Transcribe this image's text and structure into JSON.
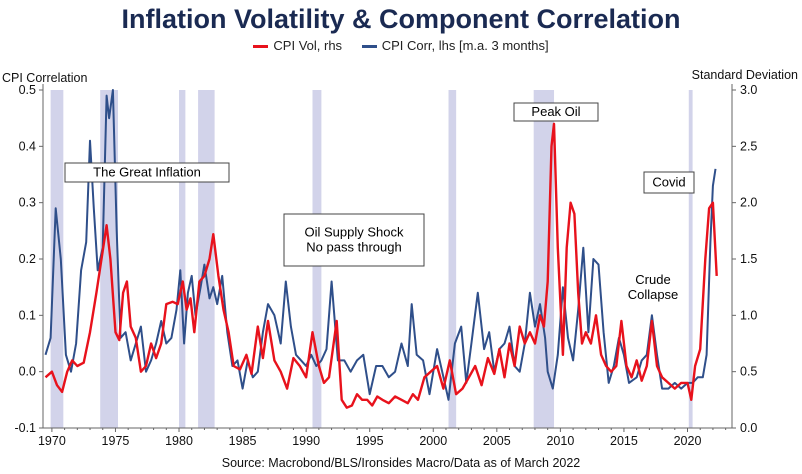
{
  "title": "Inflation Volatility & Component Correlation",
  "source": "Source: Macrobond/BLS/Ironsides Macro/Data as of March 2022",
  "chart_data": {
    "type": "line",
    "title": "Inflation Volatility & Component Correlation",
    "ylabel_left": "CPI Correlation",
    "ylabel_right": "Standard Deviation",
    "ylim_left": [
      -0.1,
      0.5
    ],
    "ylim_right": [
      0.0,
      3.0
    ],
    "xlim": [
      1969.3,
      2023.5
    ],
    "x_ticks": [
      1970,
      1975,
      1980,
      1985,
      1990,
      1995,
      2000,
      2005,
      2010,
      2015,
      2020
    ],
    "y_left_ticks": [
      -0.1,
      0.0,
      0.1,
      0.2,
      0.3,
      0.4,
      0.5
    ],
    "y_right_ticks": [
      0.0,
      0.5,
      1.0,
      1.5,
      2.0,
      2.5,
      3.0
    ],
    "legend_position": "top-center",
    "grid": false,
    "series": [
      {
        "name": "CPI Vol, rhs",
        "axis": "right",
        "color": "#e8121c",
        "points": [
          [
            1969.5,
            0.45
          ],
          [
            1970.0,
            0.5
          ],
          [
            1970.4,
            0.38
          ],
          [
            1970.8,
            0.32
          ],
          [
            1971.2,
            0.5
          ],
          [
            1971.6,
            0.6
          ],
          [
            1972.0,
            0.55
          ],
          [
            1972.5,
            0.58
          ],
          [
            1973.0,
            0.85
          ],
          [
            1973.5,
            1.2
          ],
          [
            1973.9,
            1.5
          ],
          [
            1974.3,
            1.8
          ],
          [
            1974.6,
            1.5
          ],
          [
            1975.0,
            0.85
          ],
          [
            1975.3,
            0.78
          ],
          [
            1975.6,
            1.2
          ],
          [
            1975.9,
            1.3
          ],
          [
            1976.2,
            0.9
          ],
          [
            1976.6,
            0.8
          ],
          [
            1977.0,
            0.5
          ],
          [
            1977.4,
            0.55
          ],
          [
            1977.8,
            0.75
          ],
          [
            1978.2,
            0.62
          ],
          [
            1978.6,
            0.75
          ],
          [
            1979.0,
            1.1
          ],
          [
            1979.5,
            1.12
          ],
          [
            1979.9,
            1.1
          ],
          [
            1980.3,
            1.3
          ],
          [
            1980.6,
            1.05
          ],
          [
            1980.9,
            1.15
          ],
          [
            1981.2,
            0.85
          ],
          [
            1981.6,
            1.3
          ],
          [
            1982.0,
            1.35
          ],
          [
            1982.4,
            1.5
          ],
          [
            1982.7,
            1.72
          ],
          [
            1983.1,
            1.35
          ],
          [
            1983.5,
            1.05
          ],
          [
            1983.9,
            0.85
          ],
          [
            1984.3,
            0.55
          ],
          [
            1984.8,
            0.52
          ],
          [
            1985.3,
            0.65
          ],
          [
            1985.7,
            0.48
          ],
          [
            1986.2,
            0.9
          ],
          [
            1986.6,
            0.62
          ],
          [
            1987.0,
            0.95
          ],
          [
            1987.5,
            0.6
          ],
          [
            1988.0,
            0.5
          ],
          [
            1988.5,
            0.35
          ],
          [
            1989.0,
            0.62
          ],
          [
            1989.5,
            0.55
          ],
          [
            1990.0,
            0.45
          ],
          [
            1990.5,
            0.85
          ],
          [
            1991.0,
            0.55
          ],
          [
            1991.4,
            0.4
          ],
          [
            1991.8,
            0.45
          ],
          [
            1992.4,
            0.95
          ],
          [
            1992.8,
            0.25
          ],
          [
            1993.2,
            0.18
          ],
          [
            1993.6,
            0.2
          ],
          [
            1994.0,
            0.3
          ],
          [
            1994.4,
            0.25
          ],
          [
            1994.8,
            0.25
          ],
          [
            1995.2,
            0.2
          ],
          [
            1995.6,
            0.28
          ],
          [
            1996.0,
            0.25
          ],
          [
            1996.5,
            0.22
          ],
          [
            1997.0,
            0.28
          ],
          [
            1997.5,
            0.25
          ],
          [
            1998.0,
            0.22
          ],
          [
            1998.4,
            0.3
          ],
          [
            1998.8,
            0.25
          ],
          [
            1999.3,
            0.45
          ],
          [
            1999.8,
            0.5
          ],
          [
            2000.3,
            0.55
          ],
          [
            2000.8,
            0.35
          ],
          [
            2001.3,
            0.6
          ],
          [
            2001.8,
            0.3
          ],
          [
            2002.3,
            0.35
          ],
          [
            2002.8,
            0.45
          ],
          [
            2003.3,
            0.55
          ],
          [
            2003.8,
            0.38
          ],
          [
            2004.3,
            0.62
          ],
          [
            2004.8,
            0.48
          ],
          [
            2005.2,
            0.7
          ],
          [
            2005.6,
            0.45
          ],
          [
            2006.0,
            0.75
          ],
          [
            2006.4,
            0.55
          ],
          [
            2006.8,
            0.9
          ],
          [
            2007.2,
            0.75
          ],
          [
            2007.6,
            0.85
          ],
          [
            2008.0,
            0.75
          ],
          [
            2008.4,
            1.0
          ],
          [
            2008.7,
            0.9
          ],
          [
            2009.0,
            1.3
          ],
          [
            2009.3,
            2.5
          ],
          [
            2009.5,
            2.7
          ],
          [
            2009.8,
            1.6
          ],
          [
            2010.2,
            0.65
          ],
          [
            2010.5,
            1.6
          ],
          [
            2010.8,
            2.0
          ],
          [
            2011.1,
            1.9
          ],
          [
            2011.4,
            1.2
          ],
          [
            2011.7,
            0.75
          ],
          [
            2012.0,
            0.85
          ],
          [
            2012.4,
            0.75
          ],
          [
            2012.8,
            1.0
          ],
          [
            2013.2,
            0.65
          ],
          [
            2013.6,
            0.55
          ],
          [
            2014.0,
            0.5
          ],
          [
            2014.4,
            0.55
          ],
          [
            2014.8,
            0.95
          ],
          [
            2015.2,
            0.55
          ],
          [
            2015.6,
            0.45
          ],
          [
            2016.0,
            0.6
          ],
          [
            2016.4,
            0.42
          ],
          [
            2016.8,
            0.55
          ],
          [
            2017.2,
            0.95
          ],
          [
            2017.6,
            0.55
          ],
          [
            2018.0,
            0.45
          ],
          [
            2018.5,
            0.4
          ],
          [
            2019.0,
            0.35
          ],
          [
            2019.5,
            0.4
          ],
          [
            2020.0,
            0.4
          ],
          [
            2020.3,
            0.25
          ],
          [
            2020.6,
            0.55
          ],
          [
            2021.0,
            0.7
          ],
          [
            2021.4,
            1.5
          ],
          [
            2021.7,
            1.95
          ],
          [
            2022.0,
            2.0
          ],
          [
            2022.3,
            1.35
          ]
        ]
      },
      {
        "name": "CPI Corr, lhs [m.a. 3 months]",
        "axis": "left",
        "color": "#2f4f8a",
        "points": [
          [
            1969.5,
            0.03
          ],
          [
            1969.9,
            0.06
          ],
          [
            1970.3,
            0.29
          ],
          [
            1970.7,
            0.2
          ],
          [
            1971.1,
            0.03
          ],
          [
            1971.5,
            0.0
          ],
          [
            1971.9,
            0.05
          ],
          [
            1972.3,
            0.18
          ],
          [
            1972.7,
            0.23
          ],
          [
            1973.0,
            0.41
          ],
          [
            1973.3,
            0.29
          ],
          [
            1973.6,
            0.18
          ],
          [
            1974.0,
            0.22
          ],
          [
            1974.3,
            0.49
          ],
          [
            1974.5,
            0.45
          ],
          [
            1974.8,
            0.5
          ],
          [
            1975.1,
            0.25
          ],
          [
            1975.4,
            0.06
          ],
          [
            1975.8,
            0.07
          ],
          [
            1976.2,
            0.02
          ],
          [
            1976.6,
            0.05
          ],
          [
            1977.0,
            0.08
          ],
          [
            1977.4,
            0.0
          ],
          [
            1977.8,
            0.02
          ],
          [
            1978.2,
            0.05
          ],
          [
            1978.6,
            0.09
          ],
          [
            1979.0,
            0.05
          ],
          [
            1979.4,
            0.06
          ],
          [
            1979.8,
            0.11
          ],
          [
            1980.1,
            0.18
          ],
          [
            1980.4,
            0.05
          ],
          [
            1980.7,
            0.14
          ],
          [
            1981.0,
            0.17
          ],
          [
            1981.3,
            0.1
          ],
          [
            1981.7,
            0.15
          ],
          [
            1982.0,
            0.19
          ],
          [
            1982.4,
            0.13
          ],
          [
            1982.7,
            0.15
          ],
          [
            1983.0,
            0.12
          ],
          [
            1983.4,
            0.17
          ],
          [
            1983.8,
            0.07
          ],
          [
            1984.2,
            0.01
          ],
          [
            1984.6,
            0.02
          ],
          [
            1985.0,
            -0.03
          ],
          [
            1985.4,
            0.02
          ],
          [
            1985.8,
            -0.01
          ],
          [
            1986.2,
            0.0
          ],
          [
            1986.6,
            0.07
          ],
          [
            1987.0,
            0.12
          ],
          [
            1987.5,
            0.1
          ],
          [
            1988.0,
            0.05
          ],
          [
            1988.4,
            0.16
          ],
          [
            1988.8,
            0.08
          ],
          [
            1989.2,
            0.03
          ],
          [
            1989.6,
            0.02
          ],
          [
            1990.0,
            0.01
          ],
          [
            1990.4,
            0.03
          ],
          [
            1990.8,
            0.01
          ],
          [
            1991.2,
            0.02
          ],
          [
            1991.6,
            0.04
          ],
          [
            1992.0,
            0.16
          ],
          [
            1992.5,
            0.02
          ],
          [
            1993.0,
            0.02
          ],
          [
            1993.5,
            0.0
          ],
          [
            1994.0,
            0.02
          ],
          [
            1994.5,
            0.03
          ],
          [
            1995.0,
            -0.04
          ],
          [
            1995.5,
            0.01
          ],
          [
            1996.0,
            0.01
          ],
          [
            1996.5,
            -0.01
          ],
          [
            1997.0,
            0.0
          ],
          [
            1997.5,
            0.05
          ],
          [
            1998.0,
            0.01
          ],
          [
            1998.3,
            0.12
          ],
          [
            1998.7,
            0.03
          ],
          [
            1999.2,
            0.02
          ],
          [
            1999.7,
            -0.04
          ],
          [
            2000.3,
            0.04
          ],
          [
            2000.7,
            0.0
          ],
          [
            2001.2,
            -0.05
          ],
          [
            2001.7,
            0.05
          ],
          [
            2002.2,
            0.08
          ],
          [
            2002.6,
            -0.02
          ],
          [
            2003.0,
            0.05
          ],
          [
            2003.5,
            0.14
          ],
          [
            2004.0,
            0.04
          ],
          [
            2004.4,
            0.07
          ],
          [
            2004.8,
            0.0
          ],
          [
            2005.2,
            0.04
          ],
          [
            2005.6,
            0.05
          ],
          [
            2006.0,
            0.08
          ],
          [
            2006.4,
            0.01
          ],
          [
            2006.8,
            0.0
          ],
          [
            2007.2,
            0.05
          ],
          [
            2007.6,
            0.14
          ],
          [
            2008.0,
            0.08
          ],
          [
            2008.4,
            0.12
          ],
          [
            2008.8,
            0.06
          ],
          [
            2009.0,
            0.0
          ],
          [
            2009.4,
            -0.03
          ],
          [
            2009.8,
            0.03
          ],
          [
            2010.2,
            0.15
          ],
          [
            2010.6,
            0.06
          ],
          [
            2011.0,
            0.02
          ],
          [
            2011.4,
            0.11
          ],
          [
            2011.8,
            0.22
          ],
          [
            2012.2,
            0.07
          ],
          [
            2012.6,
            0.2
          ],
          [
            2013.0,
            0.19
          ],
          [
            2013.4,
            0.07
          ],
          [
            2013.8,
            -0.02
          ],
          [
            2014.2,
            0.01
          ],
          [
            2014.6,
            0.06
          ],
          [
            2015.0,
            0.03
          ],
          [
            2015.4,
            -0.02
          ],
          [
            2016.0,
            -0.01
          ],
          [
            2016.4,
            0.02
          ],
          [
            2016.8,
            0.03
          ],
          [
            2017.2,
            0.1
          ],
          [
            2017.6,
            0.03
          ],
          [
            2018.0,
            -0.03
          ],
          [
            2018.5,
            -0.03
          ],
          [
            2019.0,
            -0.02
          ],
          [
            2019.5,
            -0.03
          ],
          [
            2020.0,
            -0.02
          ],
          [
            2020.4,
            -0.02
          ],
          [
            2020.8,
            -0.01
          ],
          [
            2021.2,
            -0.01
          ],
          [
            2021.5,
            0.03
          ],
          [
            2021.8,
            0.23
          ],
          [
            2022.0,
            0.33
          ],
          [
            2022.2,
            0.36
          ]
        ]
      }
    ],
    "shaded_periods": [
      [
        1969.9,
        1970.9
      ],
      [
        1973.8,
        1975.2
      ],
      [
        1980.0,
        1980.5
      ],
      [
        1981.5,
        1982.8
      ],
      [
        1990.5,
        1991.2
      ],
      [
        2001.2,
        2001.8
      ],
      [
        2007.9,
        2009.5
      ],
      [
        2020.1,
        2020.4
      ]
    ],
    "annotations": [
      {
        "text": "The Great Inflation",
        "box": true
      },
      {
        "text": "Oil Supply Shock",
        "box": true
      },
      {
        "text": "No pass through",
        "box": true
      },
      {
        "text": "Peak Oil",
        "box": true
      },
      {
        "text": "Covid",
        "box": true
      },
      {
        "text": "Crude",
        "box": false
      },
      {
        "text": "Collapse",
        "box": false
      }
    ]
  },
  "colors": {
    "title": "#1a2a52",
    "vol": "#e8121c",
    "corr": "#2f4f8a",
    "shade": "#d2d3ea",
    "axis": "#666666"
  }
}
